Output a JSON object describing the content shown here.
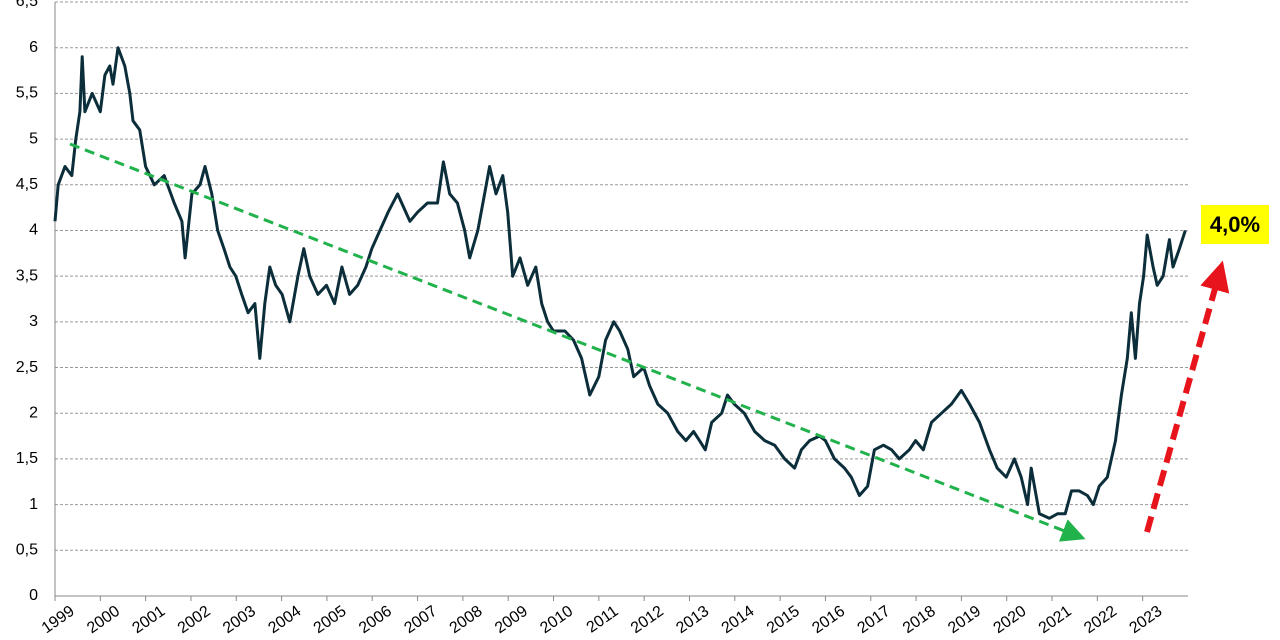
{
  "chart_data": {
    "type": "line",
    "annotation": "4,0%",
    "color": "#0b2e3a",
    "grid": true,
    "xlim": [
      1999,
      2024
    ],
    "xticks": [
      1999,
      2000,
      2001,
      2002,
      2003,
      2004,
      2005,
      2006,
      2007,
      2008,
      2009,
      2010,
      2011,
      2012,
      2013,
      2014,
      2015,
      2016,
      2017,
      2018,
      2019,
      2020,
      2021,
      2022,
      2023
    ],
    "ylim": [
      0,
      6.5
    ],
    "yticks": [
      0,
      {
        "value": 0.5,
        "label": "0,5"
      },
      1,
      {
        "value": 1.5,
        "label": "1,5"
      },
      2,
      {
        "value": 2.5,
        "label": "2,5"
      },
      3,
      {
        "value": 3.5,
        "label": "3,5"
      },
      4,
      {
        "value": 4.5,
        "label": "4,5"
      },
      5,
      {
        "value": 5.5,
        "label": "5,5"
      },
      6,
      {
        "value": 6.5,
        "label": "6,5"
      }
    ],
    "x": [
      1999.0,
      1999.07,
      1999.22,
      1999.37,
      1999.46,
      1999.55,
      1999.6,
      1999.66,
      1999.82,
      2000.0,
      2000.1,
      2000.21,
      2000.28,
      2000.39,
      2000.54,
      2000.65,
      2000.72,
      2000.87,
      2001.0,
      2001.19,
      2001.41,
      2001.63,
      2001.8,
      2001.87,
      2002.02,
      2002.2,
      2002.31,
      2002.46,
      2002.59,
      2002.73,
      2002.86,
      2002.99,
      2003.12,
      2003.26,
      2003.41,
      2003.52,
      2003.63,
      2003.74,
      2003.87,
      2004.01,
      2004.18,
      2004.36,
      2004.49,
      2004.62,
      2004.8,
      2004.99,
      2005.17,
      2005.33,
      2005.5,
      2005.68,
      2005.86,
      2005.99,
      2006.17,
      2006.35,
      2006.56,
      2006.83,
      2007.0,
      2007.22,
      2007.44,
      2007.57,
      2007.71,
      2007.88,
      2008.04,
      2008.15,
      2008.33,
      2008.48,
      2008.59,
      2008.73,
      2008.88,
      2008.99,
      2009.1,
      2009.26,
      2009.43,
      2009.61,
      2009.74,
      2009.87,
      2010.0,
      2010.25,
      2010.44,
      2010.62,
      2010.8,
      2011.0,
      2011.15,
      2011.33,
      2011.46,
      2011.64,
      2011.77,
      2011.99,
      2012.12,
      2012.3,
      2012.52,
      2012.74,
      2012.92,
      2013.09,
      2013.22,
      2013.35,
      2013.49,
      2013.71,
      2013.84,
      2013.99,
      2014.21,
      2014.44,
      2014.66,
      2014.88,
      2015.1,
      2015.32,
      2015.47,
      2015.65,
      2015.87,
      2016.0,
      2016.2,
      2016.42,
      2016.57,
      2016.75,
      2016.93,
      2017.08,
      2017.28,
      2017.46,
      2017.63,
      2017.85,
      2017.99,
      2018.16,
      2018.34,
      2018.56,
      2018.78,
      2019.0,
      2019.18,
      2019.4,
      2019.62,
      2019.79,
      2019.99,
      2020.17,
      2020.32,
      2020.46,
      2020.54,
      2020.72,
      2020.94,
      2021.12,
      2021.29,
      2021.43,
      2021.6,
      2021.78,
      2021.91,
      2022.04,
      2022.22,
      2022.4,
      2022.53,
      2022.66,
      2022.75,
      2022.84,
      2022.93,
      2023.02,
      2023.1,
      2023.23,
      2023.32,
      2023.45,
      2023.59,
      2023.67,
      2023.81,
      2023.94
    ],
    "values": [
      4.1,
      4.5,
      4.7,
      4.6,
      5.0,
      5.3,
      5.9,
      5.3,
      5.5,
      5.3,
      5.7,
      5.8,
      5.6,
      6.0,
      5.8,
      5.5,
      5.2,
      5.1,
      4.7,
      4.5,
      4.6,
      4.3,
      4.1,
      3.7,
      4.4,
      4.5,
      4.7,
      4.4,
      4.0,
      3.8,
      3.6,
      3.5,
      3.3,
      3.1,
      3.2,
      2.6,
      3.2,
      3.6,
      3.4,
      3.3,
      3.0,
      3.5,
      3.8,
      3.5,
      3.3,
      3.4,
      3.2,
      3.6,
      3.3,
      3.4,
      3.6,
      3.8,
      4.0,
      4.2,
      4.4,
      4.1,
      4.2,
      4.3,
      4.3,
      4.75,
      4.4,
      4.3,
      4.0,
      3.7,
      4.0,
      4.4,
      4.7,
      4.4,
      4.6,
      4.2,
      3.5,
      3.7,
      3.4,
      3.6,
      3.2,
      3.0,
      2.9,
      2.9,
      2.8,
      2.6,
      2.2,
      2.4,
      2.8,
      3.0,
      2.9,
      2.7,
      2.4,
      2.5,
      2.3,
      2.1,
      2.0,
      1.8,
      1.7,
      1.8,
      1.7,
      1.6,
      1.9,
      2.0,
      2.2,
      2.1,
      2.0,
      1.8,
      1.7,
      1.65,
      1.5,
      1.4,
      1.6,
      1.7,
      1.75,
      1.7,
      1.5,
      1.4,
      1.3,
      1.1,
      1.2,
      1.6,
      1.65,
      1.6,
      1.5,
      1.6,
      1.7,
      1.6,
      1.9,
      2.0,
      2.1,
      2.25,
      2.1,
      1.9,
      1.6,
      1.4,
      1.3,
      1.5,
      1.3,
      1.0,
      1.4,
      0.9,
      0.85,
      0.9,
      0.9,
      1.15,
      1.15,
      1.1,
      1.0,
      1.2,
      1.3,
      1.7,
      2.2,
      2.6,
      3.1,
      2.6,
      3.2,
      3.5,
      3.95,
      3.6,
      3.4,
      3.5,
      3.9,
      3.6,
      3.8,
      4.0
    ]
  }
}
